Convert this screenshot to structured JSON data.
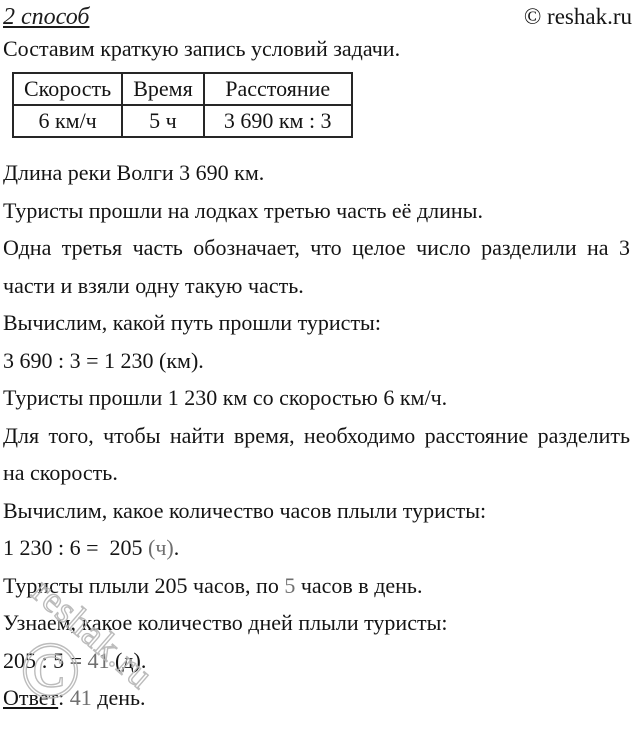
{
  "header": {
    "method_label": "2 способ",
    "copyright": "© reshak.ru"
  },
  "intro": "Составим краткую запись условий задачи.",
  "table": {
    "headers": [
      "Скорость",
      "Время",
      "Расстояние"
    ],
    "rows": [
      [
        "6 км/ч",
        "5 ч",
        "3 690 км : 3"
      ]
    ]
  },
  "paragraphs": [
    {
      "segments": [
        {
          "text": "Длина реки Волги 3 690 км."
        }
      ]
    },
    {
      "segments": [
        {
          "text": "Туристы прошли на лодках третью часть её длины."
        }
      ]
    },
    {
      "lines": [
        "Одна третья часть обозначает, что целое число разделили на 3",
        "части и взяли одну такую часть."
      ]
    },
    {
      "segments": [
        {
          "text": "Вычислим, какой путь прошли туристы:"
        }
      ]
    },
    {
      "segments": [
        {
          "text": "3 690 : 3 = 1 230 (км)."
        }
      ]
    },
    {
      "segments": [
        {
          "text": "Туристы прошли 1 230 км со скоростью 6 км/ч."
        }
      ]
    },
    {
      "lines": [
        "Для того, чтобы найти время, необходимо расстояние разделить",
        "на скорость."
      ]
    },
    {
      "segments": [
        {
          "text": "Вычислим, какое количество часов плыли туристы:"
        }
      ]
    },
    {
      "segments": [
        {
          "text": "1 230 : 6 =  205 "
        },
        {
          "text": "(ч)",
          "muted": true
        },
        {
          "text": "."
        }
      ]
    },
    {
      "segments": [
        {
          "text": "Туристы плыли 205 часов, по "
        },
        {
          "text": "5",
          "muted": true
        },
        {
          "text": " часов в день."
        }
      ]
    },
    {
      "segments": [
        {
          "text": "Узнаем, какое количество дней плыли туристы:"
        }
      ]
    },
    {
      "segments": [
        {
          "text": "205 : 5 = "
        },
        {
          "text": "41",
          "muted": true
        },
        {
          "text": " (д)."
        }
      ]
    },
    {
      "segments": [
        {
          "text": "Ответ",
          "underline": true
        },
        {
          "text": ": "
        },
        {
          "text": "41",
          "muted": true
        },
        {
          "text": " день."
        }
      ]
    }
  ],
  "watermark": {
    "symbol": "©",
    "text": "reshak.ru"
  },
  "colors": {
    "text": "#141414",
    "muted": "#6f6f6f",
    "watermark": "#b5b5b5",
    "border": "#262626"
  }
}
